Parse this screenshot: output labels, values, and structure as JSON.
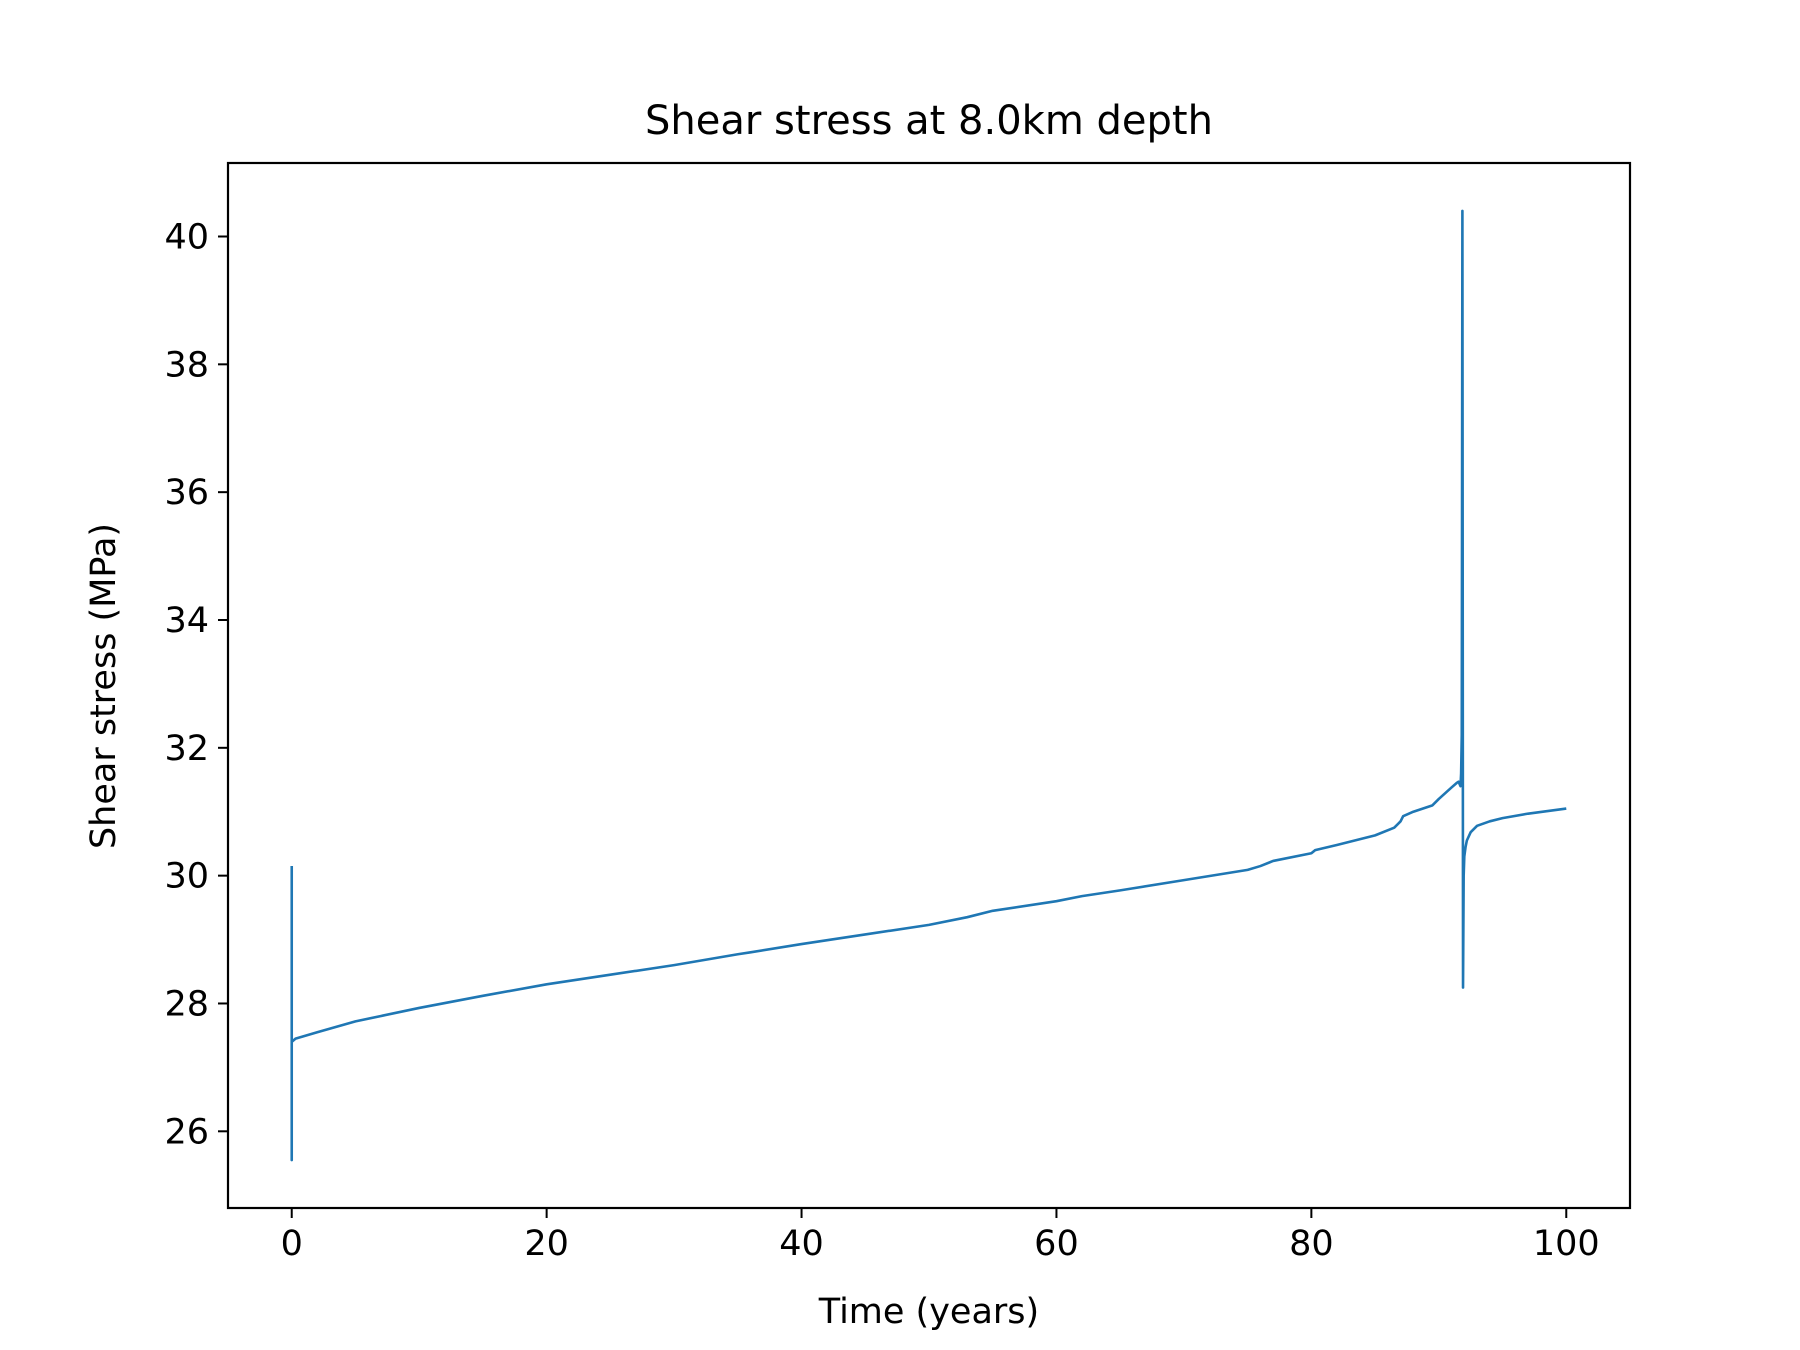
{
  "chart_data": {
    "type": "line",
    "title": "Shear stress at 8.0km depth",
    "xlabel": "Time (years)",
    "ylabel": "Shear stress (MPa)",
    "xlim": [
      -5,
      105
    ],
    "ylim": [
      24.8,
      41.15
    ],
    "xticks": [
      0,
      20,
      40,
      60,
      80,
      100
    ],
    "yticks": [
      26,
      28,
      30,
      32,
      34,
      36,
      38,
      40
    ],
    "grid": false,
    "legend": "none",
    "colors": {
      "line": "#1f77b4",
      "axes": "#000000",
      "background": "#ffffff"
    },
    "series": [
      {
        "x": [
          0,
          0,
          0,
          0,
          0.3,
          2,
          5,
          10,
          15,
          20,
          25,
          30,
          35,
          36,
          40,
          45,
          50,
          53,
          55,
          60,
          62,
          65,
          70,
          75,
          76,
          77,
          80,
          80.3,
          82,
          85,
          86.5,
          87,
          87.2,
          88,
          89.5,
          90,
          91,
          91.4,
          91.55,
          91.7,
          91.75,
          91.8,
          91.85,
          91.9,
          91.95,
          92,
          92.1,
          92.2,
          92.5,
          93,
          94,
          95,
          97,
          100
        ],
        "y": [
          30.15,
          25.55,
          27.35,
          27.4,
          27.45,
          27.55,
          27.72,
          27.93,
          28.12,
          28.3,
          28.45,
          28.6,
          28.77,
          28.8,
          28.93,
          29.08,
          29.23,
          29.35,
          29.45,
          29.6,
          29.68,
          29.77,
          29.93,
          30.09,
          30.15,
          30.23,
          30.35,
          30.4,
          30.48,
          30.63,
          30.75,
          30.85,
          30.93,
          31.0,
          31.1,
          31.2,
          31.38,
          31.45,
          31.47,
          31.4,
          31.6,
          32.2,
          40.4,
          28.25,
          30.0,
          30.3,
          30.45,
          30.55,
          30.68,
          30.78,
          30.85,
          30.9,
          30.97,
          31.05
        ]
      }
    ]
  }
}
